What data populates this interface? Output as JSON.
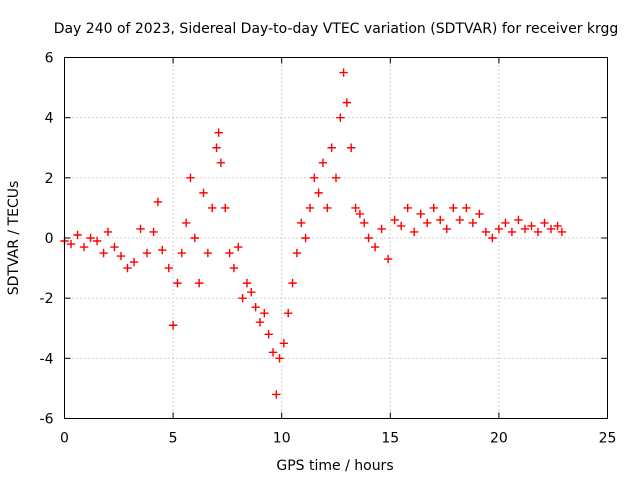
{
  "chart_data": {
    "type": "scatter",
    "title": "Day 240 of 2023, Sidereal Day-to-day VTEC variation (SDTVAR) for receiver krgg",
    "xlabel": "GPS time / hours",
    "ylabel": "SDTVAR / TECUs",
    "xlim": [
      0,
      25
    ],
    "ylim": [
      -6,
      6
    ],
    "xticks": [
      0,
      5,
      10,
      15,
      20,
      25
    ],
    "yticks": [
      -6,
      -4,
      -2,
      0,
      2,
      4,
      6
    ],
    "xtick_labels": [
      "0",
      "5",
      "10",
      "15",
      "20",
      "25"
    ],
    "ytick_labels": [
      "-6",
      "-4",
      "-2",
      "0",
      "2",
      "4",
      "6"
    ],
    "grid": true,
    "legend": "none",
    "marker": "+",
    "color": "#ff0000",
    "series": [
      {
        "name": "SDTVAR",
        "x": [
          0.0,
          0.3,
          0.6,
          0.9,
          1.2,
          1.5,
          1.8,
          2.0,
          2.3,
          2.6,
          2.9,
          3.2,
          3.5,
          3.8,
          4.1,
          4.3,
          4.5,
          4.8,
          5.0,
          5.2,
          5.4,
          5.6,
          5.8,
          6.0,
          6.2,
          6.4,
          6.6,
          6.8,
          7.0,
          7.1,
          7.2,
          7.4,
          7.6,
          7.8,
          8.0,
          8.2,
          8.4,
          8.6,
          8.8,
          9.0,
          9.2,
          9.4,
          9.6,
          9.75,
          9.9,
          10.1,
          10.3,
          10.5,
          10.7,
          10.9,
          11.1,
          11.3,
          11.5,
          11.7,
          11.9,
          12.1,
          12.3,
          12.5,
          12.7,
          12.85,
          13.0,
          13.2,
          13.4,
          13.6,
          13.8,
          14.0,
          14.3,
          14.6,
          14.9,
          15.2,
          15.5,
          15.8,
          16.1,
          16.4,
          16.7,
          17.0,
          17.3,
          17.6,
          17.9,
          18.2,
          18.5,
          18.8,
          19.1,
          19.4,
          19.7,
          20.0,
          20.3,
          20.6,
          20.9,
          21.2,
          21.5,
          21.8,
          22.1,
          22.4,
          22.7,
          22.9
        ],
        "y": [
          -0.1,
          -0.2,
          0.1,
          -0.3,
          0.0,
          -0.1,
          -0.5,
          0.2,
          -0.3,
          -0.6,
          -1.0,
          -0.8,
          0.3,
          -0.5,
          0.2,
          1.2,
          -0.4,
          -1.0,
          -2.9,
          -1.5,
          -0.5,
          0.5,
          2.0,
          0.0,
          -1.5,
          1.5,
          -0.5,
          1.0,
          3.0,
          3.5,
          2.5,
          1.0,
          -0.5,
          -1.0,
          -0.3,
          -2.0,
          -1.5,
          -1.8,
          -2.3,
          -2.8,
          -2.5,
          -3.2,
          -3.8,
          -5.2,
          -4.0,
          -3.5,
          -2.5,
          -1.5,
          -0.5,
          0.5,
          0.0,
          1.0,
          2.0,
          1.5,
          2.5,
          1.0,
          3.0,
          2.0,
          4.0,
          5.5,
          4.5,
          3.0,
          1.0,
          0.8,
          0.5,
          0.0,
          -0.3,
          0.3,
          -0.7,
          0.6,
          0.4,
          1.0,
          0.2,
          0.8,
          0.5,
          1.0,
          0.6,
          0.3,
          1.0,
          0.6,
          1.0,
          0.5,
          0.8,
          0.2,
          0.0,
          0.3,
          0.5,
          0.2,
          0.6,
          0.3,
          0.4,
          0.2,
          0.5,
          0.3,
          0.4,
          0.2
        ]
      }
    ]
  }
}
